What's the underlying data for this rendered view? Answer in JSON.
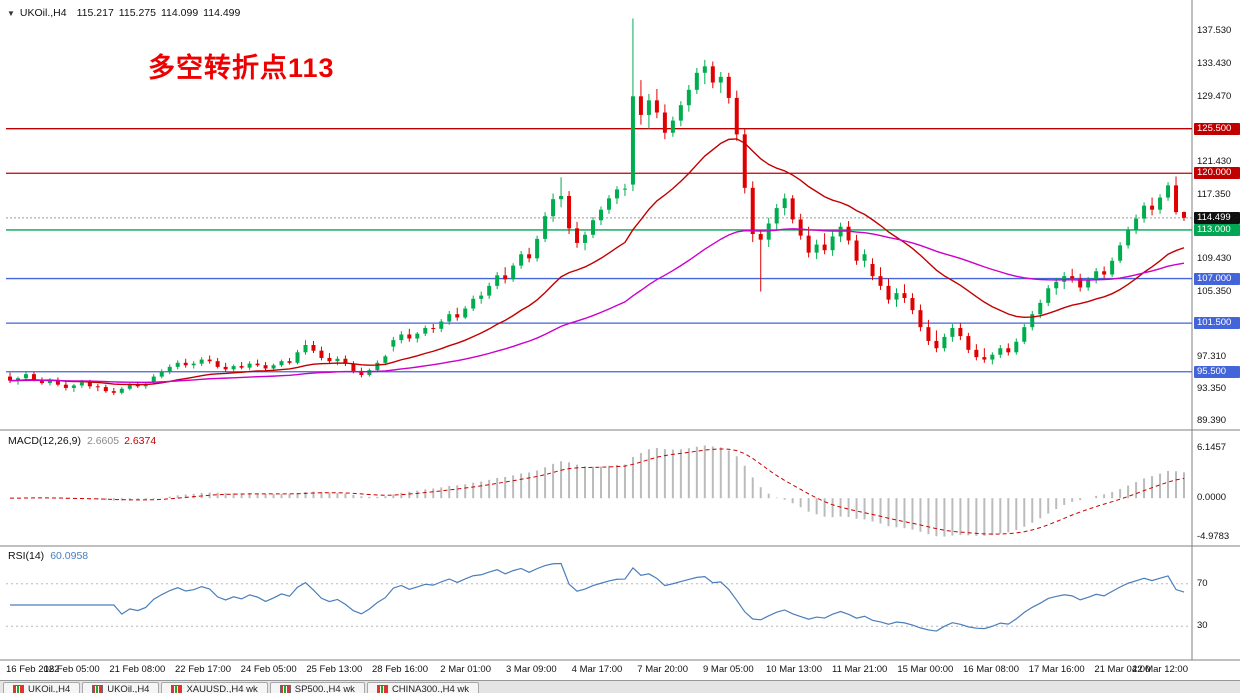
{
  "window": {
    "collapse_icon": "▼",
    "title_symbol": "UKOil.,H4",
    "ohlc": {
      "open": "115.217",
      "high": "115.275",
      "low": "114.099",
      "close": "114.499"
    }
  },
  "annotation": {
    "text": "多空转折点113",
    "color": "#ee0000"
  },
  "colors": {
    "bull": "#00ad4e",
    "bear": "#e00000",
    "ma_fast": "#c00000",
    "ma_slow": "#cc00cc",
    "macd_hist": "#bbbbbb",
    "macd_signal": "#cc0000",
    "rsi": "#4a7ebb",
    "current_price_line": "#9a9a9a",
    "separator": "#808080",
    "level_dotted": "#b8b8b8"
  },
  "main_chart": {
    "current_price": {
      "value": 114.499,
      "text": "114.499"
    },
    "hlines": [
      {
        "value": 125.5,
        "color": "#c00000"
      },
      {
        "value": 120.0,
        "color": "#c00000"
      },
      {
        "value": 113.0,
        "color": "#00a651"
      },
      {
        "value": 107.0,
        "color": "#4464d9"
      },
      {
        "value": 101.5,
        "color": "#4464d9"
      },
      {
        "value": 95.5,
        "color": "#4464d9"
      }
    ],
    "y_axis_labels": [
      {
        "text": "137.530",
        "value": 137.53,
        "badge": false
      },
      {
        "text": "133.430",
        "value": 133.43,
        "badge": false
      },
      {
        "text": "129.470",
        "value": 129.47,
        "badge": false
      },
      {
        "text": "125.500",
        "value": 125.5,
        "badge": true,
        "color": "#c00000"
      },
      {
        "text": "121.430",
        "value": 121.43,
        "badge": false
      },
      {
        "text": "120.000",
        "value": 120.0,
        "badge": true,
        "color": "#c00000"
      },
      {
        "text": "117.350",
        "value": 117.35,
        "badge": false
      },
      {
        "text": "114.499",
        "value": 114.499,
        "badge": true,
        "color": "#111111"
      },
      {
        "text": "113.000",
        "value": 113.0,
        "badge": true,
        "color": "#00a651"
      },
      {
        "text": "109.430",
        "value": 109.43,
        "badge": false
      },
      {
        "text": "107.000",
        "value": 107.0,
        "badge": true,
        "color": "#4464d9"
      },
      {
        "text": "105.350",
        "value": 105.35,
        "badge": false
      },
      {
        "text": "101.500",
        "value": 101.5,
        "badge": true,
        "color": "#4464d9"
      },
      {
        "text": "97.310",
        "value": 97.31,
        "badge": false
      },
      {
        "text": "95.500",
        "value": 95.5,
        "badge": true,
        "color": "#4464d9"
      },
      {
        "text": "93.350",
        "value": 93.35,
        "badge": false
      },
      {
        "text": "89.390",
        "value": 89.39,
        "badge": false
      }
    ]
  },
  "macd_panel": {
    "label": "MACD(12,26,9)",
    "main_value": "2.6605",
    "signal_value": "2.6374",
    "params": {
      "fast": 12,
      "slow": 26,
      "signal": 9
    },
    "axis_top_label": "6.1457",
    "axis_zero_label": "0.0000",
    "axis_bottom_label": "-4.9783"
  },
  "rsi_panel": {
    "label": "RSI(14)",
    "value": "60.0958",
    "period": 14,
    "levels": [
      70,
      30
    ],
    "level_labels": [
      "70",
      "30"
    ]
  },
  "time_axis": {
    "labels": [
      "16 Feb 2022",
      "18 Feb 05:00",
      "21 Feb 08:00",
      "22 Feb 17:00",
      "24 Feb 05:00",
      "25 Feb 13:00",
      "28 Feb 16:00",
      "2 Mar 01:00",
      "3 Mar 09:00",
      "4 Mar 17:00",
      "7 Mar 20:00",
      "9 Mar 05:00",
      "10 Mar 13:00",
      "11 Mar 21:00",
      "15 Mar 00:00",
      "16 Mar 08:00",
      "17 Mar 16:00",
      "21 Mar 04:00",
      "22 Mar 12:00"
    ]
  },
  "tabs": {
    "items": [
      {
        "label": "UKOil.,H4"
      },
      {
        "label": "UKOil.,H4"
      },
      {
        "label": "XAUUSD.,H4 wk"
      },
      {
        "label": "SP500.,H4 wk"
      },
      {
        "label": "CHINA300.,H4 wk"
      }
    ]
  },
  "chart_data": {
    "type": "candlestick",
    "title": "UKOil H4 with MACD(12,26,9) and RSI(14)",
    "x_range": [
      "16 Feb 2022",
      "22 Mar 12:00"
    ],
    "y_range": [
      88.8,
      140.4
    ],
    "moving_averages": [
      {
        "period": 22,
        "color": "#c00000"
      },
      {
        "period": 66,
        "color": "#cc00cc"
      }
    ],
    "candles": [
      [
        94.9,
        95.4,
        94.1,
        94.4
      ],
      [
        94.4,
        94.9,
        93.9,
        94.7
      ],
      [
        94.7,
        95.6,
        94.5,
        95.2
      ],
      [
        95.2,
        95.5,
        94.3,
        94.5
      ],
      [
        94.5,
        94.8,
        93.9,
        94.1
      ],
      [
        94.1,
        94.7,
        93.8,
        94.5
      ],
      [
        94.5,
        94.8,
        93.7,
        93.9
      ],
      [
        93.9,
        94.3,
        93.2,
        93.5
      ],
      [
        93.5,
        94.0,
        93.0,
        93.8
      ],
      [
        93.8,
        94.5,
        93.5,
        94.2
      ],
      [
        94.2,
        94.5,
        93.4,
        93.7
      ],
      [
        93.7,
        94.0,
        93.1,
        93.6
      ],
      [
        93.6,
        93.9,
        92.9,
        93.1
      ],
      [
        93.1,
        93.5,
        92.6,
        92.9
      ],
      [
        92.9,
        93.6,
        92.7,
        93.4
      ],
      [
        93.4,
        94.1,
        93.2,
        93.9
      ],
      [
        93.9,
        94.3,
        93.5,
        93.7
      ],
      [
        93.7,
        94.2,
        93.4,
        94.0
      ],
      [
        94.3,
        95.2,
        94.0,
        94.9
      ],
      [
        94.9,
        95.8,
        94.7,
        95.5
      ],
      [
        95.5,
        96.4,
        95.2,
        96.1
      ],
      [
        96.1,
        96.9,
        95.8,
        96.6
      ],
      [
        96.6,
        97.1,
        96.0,
        96.3
      ],
      [
        96.3,
        96.8,
        95.9,
        96.5
      ],
      [
        96.5,
        97.3,
        96.2,
        97.0
      ],
      [
        97.0,
        97.5,
        96.5,
        96.8
      ],
      [
        96.8,
        97.2,
        95.9,
        96.1
      ],
      [
        96.1,
        96.6,
        95.5,
        95.8
      ],
      [
        95.8,
        96.4,
        95.4,
        96.2
      ],
      [
        96.2,
        96.7,
        95.8,
        96.0
      ],
      [
        96.0,
        96.8,
        95.7,
        96.5
      ],
      [
        96.5,
        97.0,
        96.1,
        96.3
      ],
      [
        96.3,
        96.7,
        95.6,
        95.9
      ],
      [
        95.9,
        96.5,
        95.6,
        96.3
      ],
      [
        96.3,
        97.0,
        96.1,
        96.8
      ],
      [
        96.8,
        97.2,
        96.4,
        96.6
      ],
      [
        96.6,
        98.2,
        96.4,
        97.9
      ],
      [
        97.9,
        99.4,
        97.6,
        98.8
      ],
      [
        98.8,
        99.3,
        97.8,
        98.1
      ],
      [
        98.1,
        98.6,
        96.9,
        97.2
      ],
      [
        97.2,
        97.8,
        96.5,
        96.8
      ],
      [
        96.8,
        97.4,
        96.3,
        97.1
      ],
      [
        97.1,
        97.5,
        96.2,
        96.5
      ],
      [
        96.5,
        96.8,
        95.3,
        95.6
      ],
      [
        95.6,
        96.0,
        94.8,
        95.1
      ],
      [
        95.1,
        95.9,
        94.9,
        95.7
      ],
      [
        95.7,
        96.9,
        95.5,
        96.6
      ],
      [
        96.6,
        97.6,
        96.3,
        97.4
      ],
      [
        98.6,
        99.8,
        98.0,
        99.4
      ],
      [
        99.4,
        100.5,
        99.0,
        100.1
      ],
      [
        100.1,
        100.8,
        99.2,
        99.6
      ],
      [
        99.6,
        100.4,
        99.1,
        100.2
      ],
      [
        100.2,
        101.2,
        99.9,
        100.9
      ],
      [
        100.9,
        101.4,
        100.3,
        100.8
      ],
      [
        100.8,
        102.0,
        100.4,
        101.7
      ],
      [
        101.7,
        103.0,
        101.3,
        102.6
      ],
      [
        102.6,
        103.4,
        101.8,
        102.2
      ],
      [
        102.2,
        103.6,
        102.0,
        103.3
      ],
      [
        103.3,
        104.9,
        103.0,
        104.5
      ],
      [
        104.5,
        105.4,
        103.9,
        104.9
      ],
      [
        104.9,
        106.5,
        104.5,
        106.1
      ],
      [
        106.1,
        107.8,
        105.7,
        107.4
      ],
      [
        107.4,
        108.4,
        106.4,
        106.9
      ],
      [
        106.9,
        108.9,
        106.6,
        108.6
      ],
      [
        108.6,
        110.4,
        108.2,
        110.0
      ],
      [
        110.0,
        110.8,
        109.0,
        109.5
      ],
      [
        109.5,
        112.3,
        109.1,
        111.9
      ],
      [
        111.9,
        115.2,
        111.5,
        114.7
      ],
      [
        114.7,
        117.5,
        114.0,
        116.8
      ],
      [
        116.8,
        119.5,
        115.8,
        117.2
      ],
      [
        117.2,
        117.8,
        112.5,
        113.2
      ],
      [
        113.2,
        114.0,
        110.8,
        111.4
      ],
      [
        111.4,
        112.8,
        110.5,
        112.4
      ],
      [
        112.4,
        114.6,
        112.0,
        114.2
      ],
      [
        114.2,
        115.9,
        113.6,
        115.5
      ],
      [
        115.5,
        117.3,
        115.0,
        116.9
      ],
      [
        116.9,
        118.4,
        116.2,
        118.0
      ],
      [
        118.0,
        118.7,
        117.2,
        118.1
      ],
      [
        118.6,
        139.1,
        117.8,
        129.5
      ],
      [
        129.5,
        131.5,
        126.0,
        127.2
      ],
      [
        127.2,
        129.8,
        125.5,
        129.0
      ],
      [
        129.0,
        130.4,
        126.8,
        127.5
      ],
      [
        127.5,
        128.5,
        124.2,
        125.0
      ],
      [
        125.0,
        127.0,
        124.5,
        126.5
      ],
      [
        126.5,
        128.9,
        125.8,
        128.4
      ],
      [
        128.4,
        130.9,
        127.6,
        130.3
      ],
      [
        130.3,
        133.0,
        129.8,
        132.4
      ],
      [
        132.4,
        134.0,
        131.0,
        133.2
      ],
      [
        133.2,
        133.8,
        130.5,
        131.2
      ],
      [
        131.2,
        132.5,
        129.9,
        131.9
      ],
      [
        131.9,
        132.4,
        128.6,
        129.3
      ],
      [
        129.3,
        130.2,
        124.0,
        124.8
      ],
      [
        124.8,
        125.5,
        117.5,
        118.2
      ],
      [
        118.2,
        119.0,
        111.5,
        112.5
      ],
      [
        112.5,
        113.0,
        105.4,
        111.8
      ],
      [
        111.8,
        114.5,
        110.9,
        113.8
      ],
      [
        113.8,
        116.2,
        113.0,
        115.7
      ],
      [
        115.7,
        117.5,
        114.8,
        116.9
      ],
      [
        116.9,
        117.3,
        113.8,
        114.3
      ],
      [
        114.3,
        115.0,
        111.8,
        112.3
      ],
      [
        112.3,
        113.4,
        109.6,
        110.2
      ],
      [
        110.2,
        111.8,
        109.4,
        111.2
      ],
      [
        111.2,
        112.6,
        110.0,
        110.5
      ],
      [
        110.5,
        112.8,
        109.8,
        112.2
      ],
      [
        112.2,
        113.9,
        111.5,
        113.4
      ],
      [
        113.4,
        114.1,
        111.2,
        111.7
      ],
      [
        111.7,
        112.4,
        108.7,
        109.2
      ],
      [
        109.2,
        110.6,
        108.4,
        110.0
      ],
      [
        108.8,
        109.5,
        106.8,
        107.3
      ],
      [
        107.3,
        108.4,
        105.6,
        106.1
      ],
      [
        106.1,
        107.0,
        103.9,
        104.4
      ],
      [
        104.4,
        105.8,
        103.5,
        105.2
      ],
      [
        105.2,
        106.3,
        104.0,
        104.6
      ],
      [
        104.6,
        105.2,
        102.6,
        103.1
      ],
      [
        103.1,
        103.8,
        100.5,
        101.0
      ],
      [
        101.0,
        101.9,
        98.8,
        99.3
      ],
      [
        99.3,
        100.6,
        97.9,
        98.4
      ],
      [
        98.4,
        100.2,
        98.0,
        99.8
      ],
      [
        99.8,
        101.4,
        99.2,
        100.9
      ],
      [
        100.9,
        101.5,
        99.4,
        99.9
      ],
      [
        99.9,
        100.3,
        97.8,
        98.2
      ],
      [
        98.2,
        98.9,
        96.9,
        97.3
      ],
      [
        97.3,
        98.4,
        96.6,
        97.0
      ],
      [
        97.0,
        97.9,
        96.4,
        97.6
      ],
      [
        97.6,
        98.8,
        97.2,
        98.4
      ],
      [
        98.4,
        99.0,
        97.5,
        97.9
      ],
      [
        97.9,
        99.6,
        97.6,
        99.2
      ],
      [
        99.2,
        101.4,
        98.9,
        101.0
      ],
      [
        101.0,
        103.0,
        100.6,
        102.6
      ],
      [
        102.6,
        104.4,
        102.1,
        104.0
      ],
      [
        104.0,
        106.2,
        103.6,
        105.8
      ],
      [
        105.8,
        107.1,
        105.0,
        106.6
      ],
      [
        106.6,
        107.8,
        105.7,
        107.3
      ],
      [
        107.3,
        108.2,
        106.5,
        107.0
      ],
      [
        107.0,
        107.6,
        105.4,
        105.9
      ],
      [
        105.9,
        107.2,
        105.5,
        106.8
      ],
      [
        106.8,
        108.3,
        106.4,
        107.9
      ],
      [
        107.9,
        108.5,
        107.0,
        107.5
      ],
      [
        107.5,
        109.6,
        107.2,
        109.2
      ],
      [
        109.2,
        111.5,
        108.9,
        111.1
      ],
      [
        111.1,
        113.4,
        110.7,
        113.0
      ],
      [
        113.0,
        114.9,
        112.5,
        114.4
      ],
      [
        114.4,
        116.4,
        113.9,
        116.0
      ],
      [
        116.0,
        117.0,
        114.8,
        115.5
      ],
      [
        115.5,
        117.4,
        115.0,
        117.0
      ],
      [
        117.0,
        118.9,
        116.6,
        118.5
      ],
      [
        118.5,
        119.6,
        114.9,
        115.2
      ],
      [
        115.217,
        115.275,
        114.099,
        114.499
      ]
    ]
  }
}
